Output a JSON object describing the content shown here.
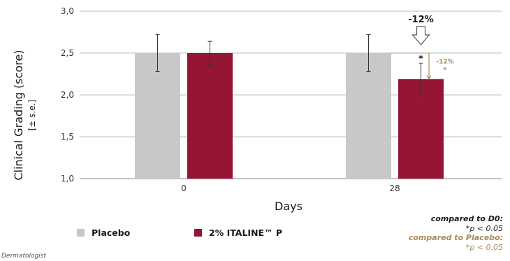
{
  "chart_data": {
    "type": "bar",
    "categories": [
      "0",
      "28"
    ],
    "series": [
      {
        "name": "Placebo",
        "color": "#c8c8c8",
        "values": [
          2.5,
          2.5
        ],
        "errors": [
          0.22,
          0.22
        ]
      },
      {
        "name": "2% ITALINE™ P",
        "color": "#951634",
        "values": [
          2.5,
          2.19
        ],
        "errors": [
          0.14,
          0.19
        ]
      }
    ],
    "ylabel": "Clinical Grading (score)",
    "ylabel_sub": "[± s.e.]",
    "xlabel": "Days",
    "ylim": [
      1.0,
      3.0
    ],
    "yticks": [
      "1,0",
      "1,5",
      "2,0",
      "2,5",
      "3,0"
    ],
    "grid": true,
    "legend_position": "bottom-left",
    "annotations": {
      "arrow_label": "-12%",
      "star": "*",
      "bracket_label": "-12%",
      "bracket_star": "*",
      "bracket_color": "#a88a5a"
    }
  },
  "significance": {
    "d0_heading": "compared to D0:",
    "d0_text": "*p < 0.05",
    "placebo_heading": "compared to Placebo:",
    "placebo_text": "*p < 0.05",
    "d0_color": "#1a1a1a",
    "placebo_color": "#a88a5a"
  },
  "footer": {
    "note": "Dermatologist"
  }
}
